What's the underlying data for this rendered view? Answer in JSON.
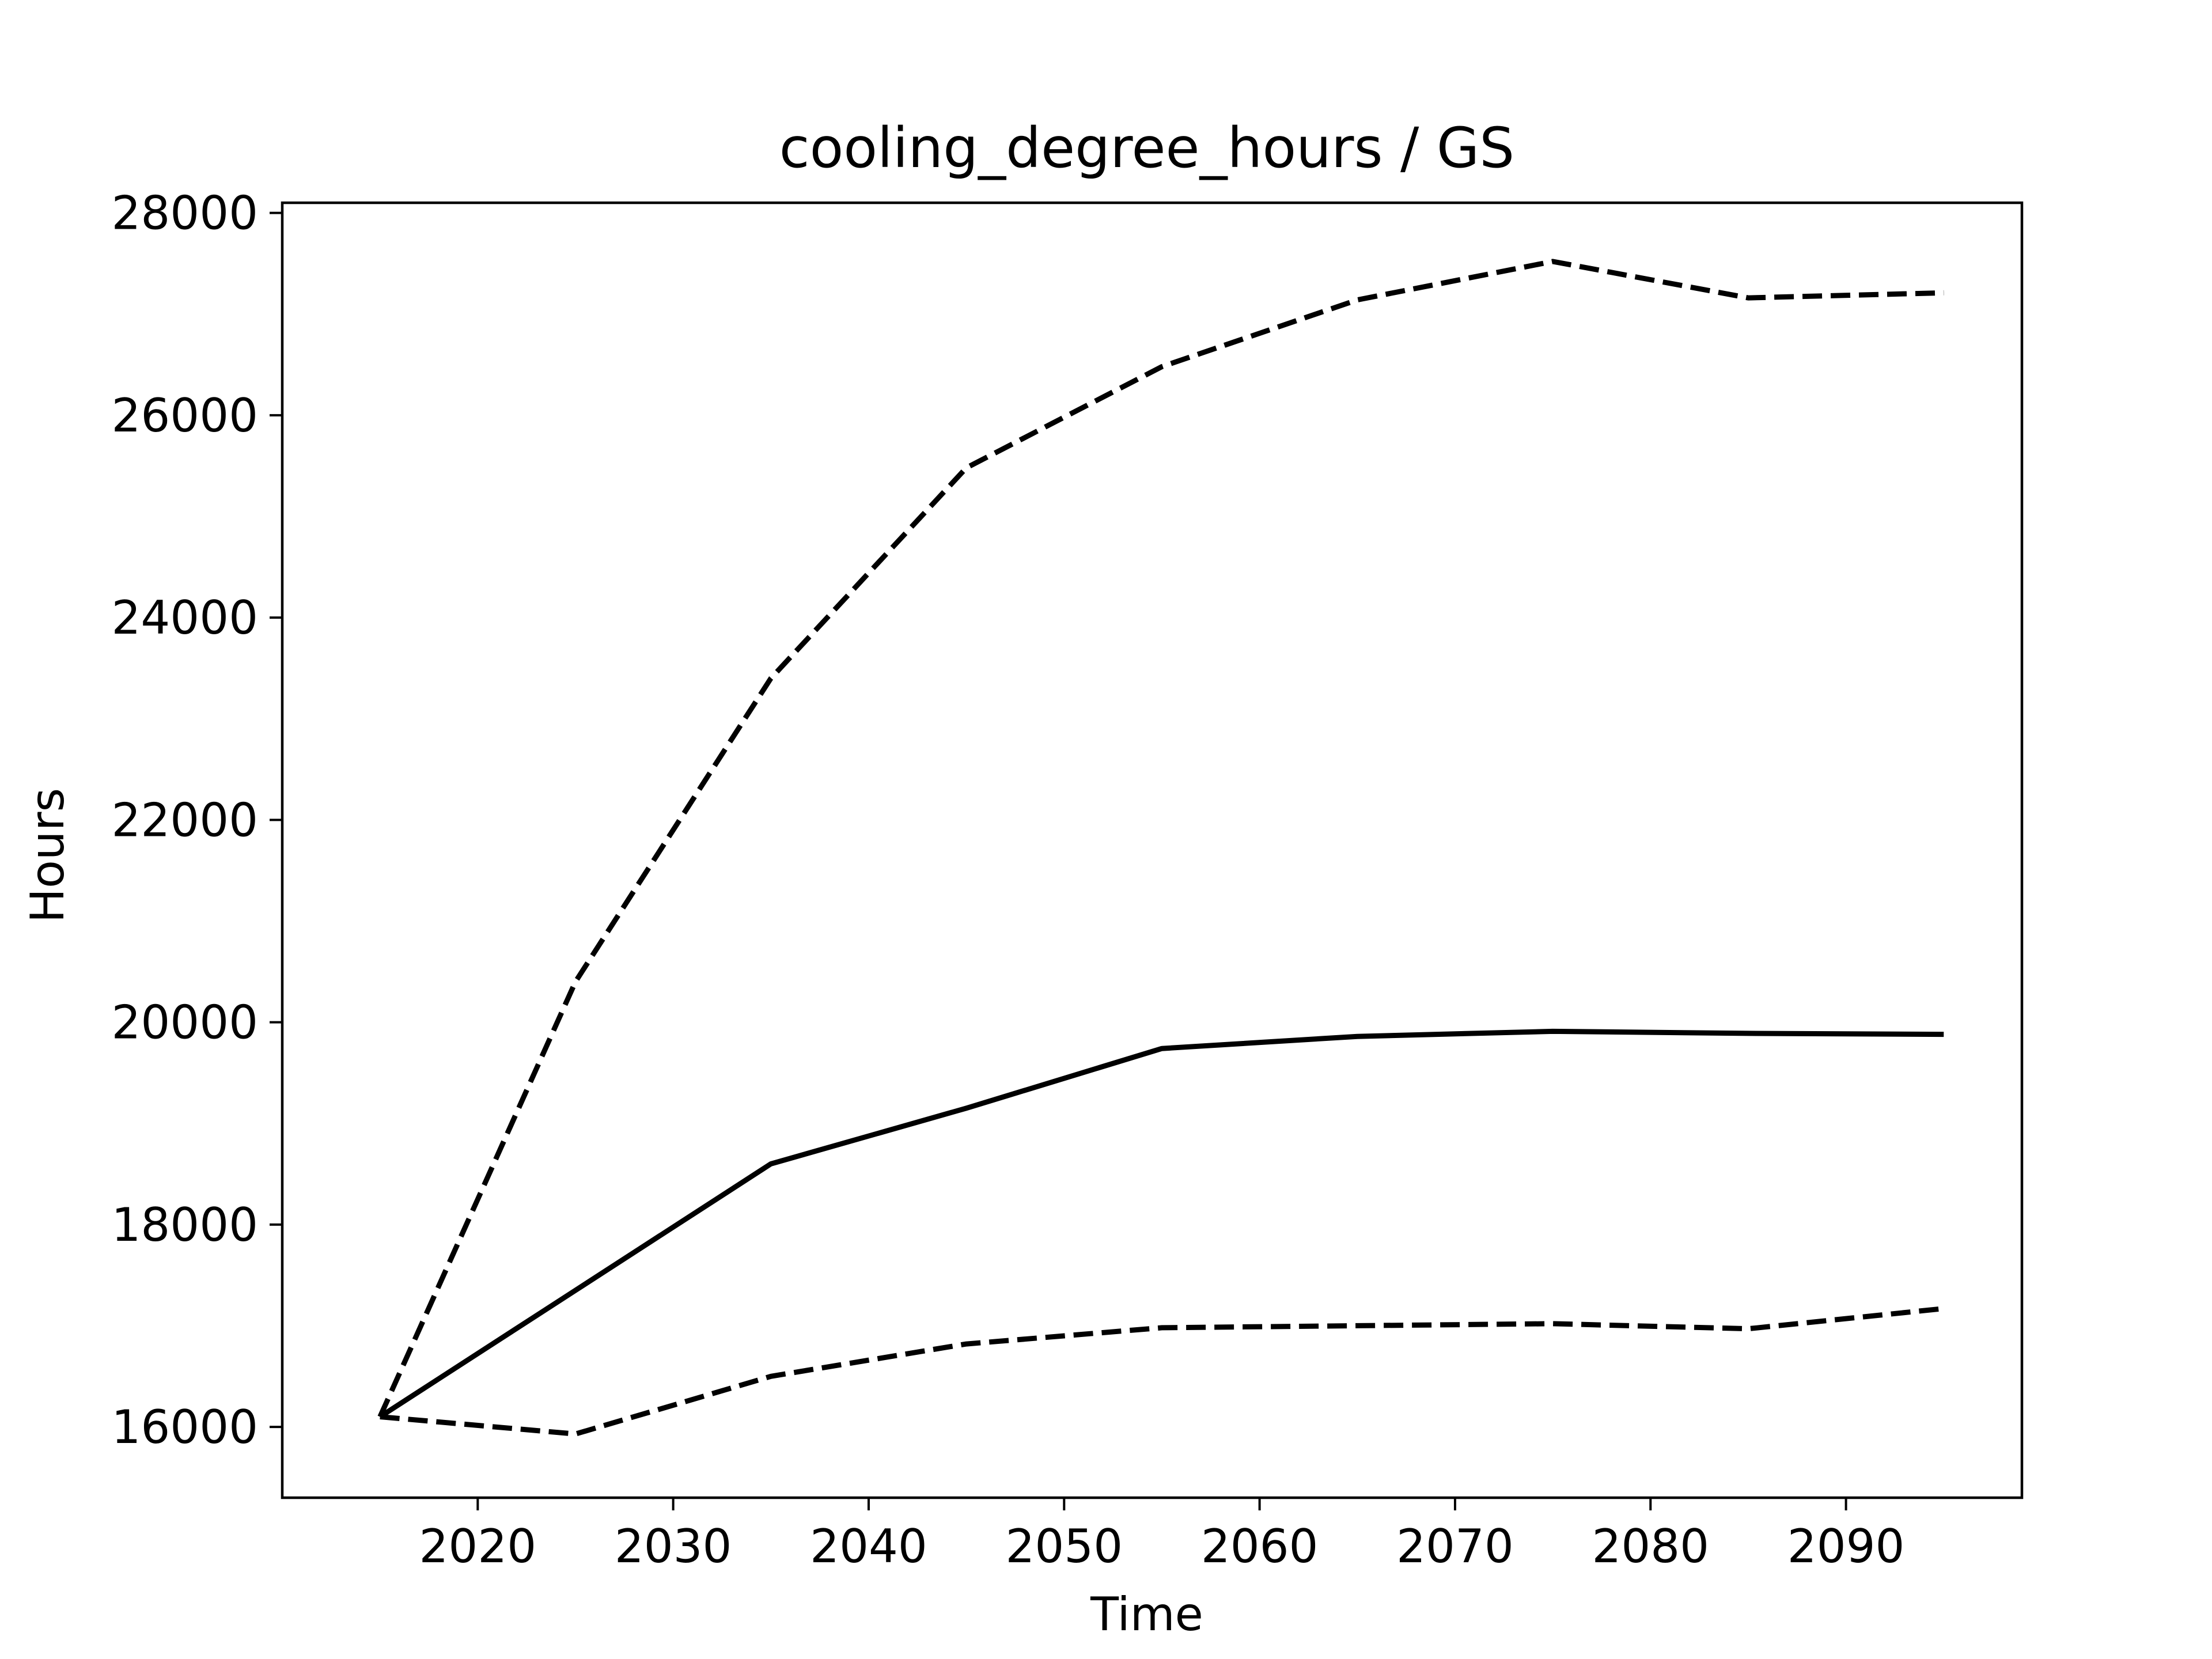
{
  "chart_data": {
    "type": "line",
    "title": "cooling_degree_hours / GS",
    "xlabel": "Time",
    "ylabel": "Hours",
    "x": [
      2015,
      2025,
      2035,
      2045,
      2055,
      2065,
      2075,
      2085,
      2095
    ],
    "xlim": [
      2010,
      2099
    ],
    "ylim": [
      15300,
      28100
    ],
    "xticks": [
      "2020",
      "2030",
      "2040",
      "2050",
      "2060",
      "2070",
      "2080",
      "2090"
    ],
    "yticks": [
      "16000",
      "18000",
      "20000",
      "22000",
      "24000",
      "26000",
      "28000"
    ],
    "grid": false,
    "series": [
      {
        "style": "solid",
        "values": [
          16100,
          17350,
          18600,
          19150,
          19740,
          19860,
          19910,
          19890,
          19880
        ]
      },
      {
        "style": "dashed",
        "values": [
          16100,
          20400,
          23400,
          25480,
          26480,
          27140,
          27520,
          27160,
          27210
        ]
      },
      {
        "style": "dashed",
        "values": [
          16100,
          15930,
          16500,
          16820,
          16980,
          17000,
          17020,
          16970,
          17170
        ]
      }
    ],
    "colors": {
      "line": "#000000",
      "axes": "#000000",
      "background": "#ffffff"
    }
  }
}
